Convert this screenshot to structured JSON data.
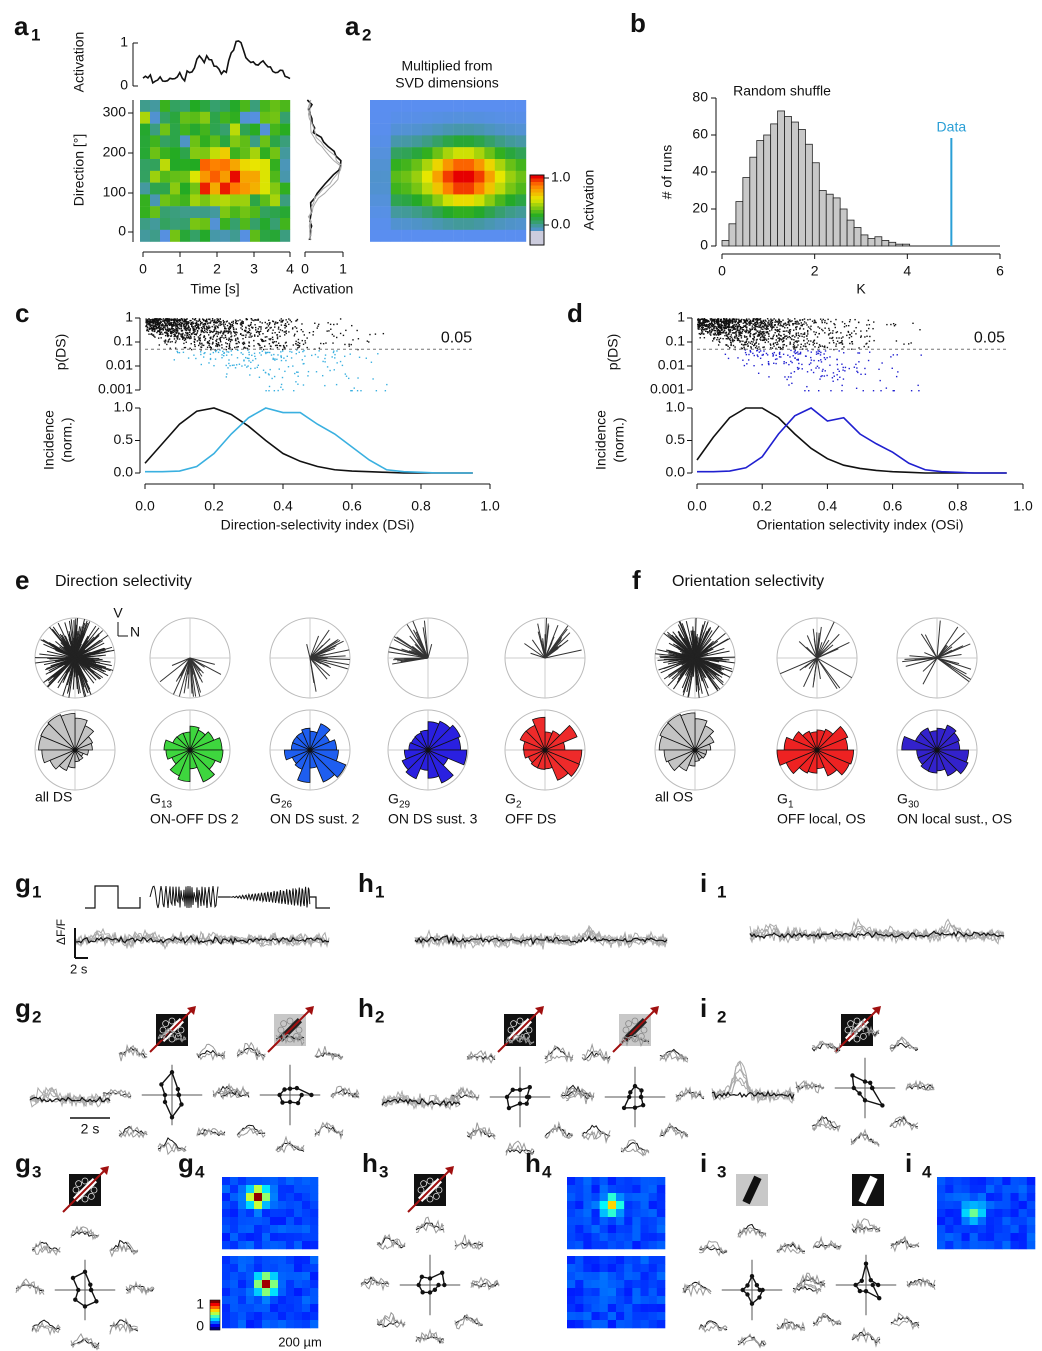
{
  "panels": {
    "a1": {
      "label": "a",
      "sub": "1",
      "top_ylabel": "Activation",
      "top_yticks": [
        "1",
        "0"
      ],
      "ylabel": "Direction [°]",
      "yticks": [
        "300",
        "200",
        "100",
        "0"
      ],
      "xticks": [
        "0",
        "1",
        "2",
        "3",
        "4"
      ],
      "xlabel": "Time [s]",
      "side_xticks": [
        "0",
        "1"
      ],
      "side_xlabel": "Activation"
    },
    "a2": {
      "label": "a",
      "sub": "2",
      "title": [
        "Multiplied from",
        "SVD dimensions"
      ],
      "colorbar_ticks": [
        "1.0",
        "0.0"
      ],
      "colorbar_label": "Activation"
    },
    "b": {
      "label": "b"
    },
    "c": {
      "label": "c"
    },
    "d": {
      "label": "d"
    },
    "e": {
      "label": "e",
      "title": "Direction selectivity",
      "axes": [
        "V",
        "N"
      ],
      "groups": [
        {
          "name": "all DS",
          "color": "#c4c4c4"
        },
        {
          "name": "G",
          "sub": "13",
          "desc": "ON-OFF DS 2",
          "color": "#3ed63e"
        },
        {
          "name": "G",
          "sub": "26",
          "desc": "ON DS sust. 2",
          "color": "#1e5ef0"
        },
        {
          "name": "G",
          "sub": "29",
          "desc": "ON DS sust. 3",
          "color": "#2a20e0"
        },
        {
          "name": "G",
          "sub": "2",
          "desc": "OFF DS",
          "color": "#ee2a2a"
        }
      ]
    },
    "f": {
      "label": "f",
      "title": "Orientation selectivity",
      "groups": [
        {
          "name": "all OS",
          "color": "#c4c4c4"
        },
        {
          "name": "G",
          "sub": "1",
          "desc": "OFF local, OS",
          "color": "#ee2222"
        },
        {
          "name": "G",
          "sub": "30",
          "desc": "ON local sust., OS",
          "color": "#3322cc"
        }
      ]
    },
    "g1": {
      "label": "g",
      "sub": "1",
      "ylabel": "ΔF/F",
      "scale": "2 s"
    },
    "g2": {
      "label": "g",
      "sub": "2",
      "scale": "2 s"
    },
    "g3": {
      "label": "g",
      "sub": "3"
    },
    "g4": {
      "label": "g",
      "sub": "4",
      "cbar_ticks": [
        "1",
        "0"
      ],
      "scale": "200 µm"
    },
    "h1": {
      "label": "h",
      "sub": "1"
    },
    "h2": {
      "label": "h",
      "sub": "2"
    },
    "h3": {
      "label": "h",
      "sub": "3"
    },
    "h4": {
      "label": "h",
      "sub": "4"
    },
    "i1": {
      "label": "i",
      "sub": "1"
    },
    "i2": {
      "label": "i",
      "sub": "2"
    },
    "i3": {
      "label": "i",
      "sub": "3"
    },
    "i4": {
      "label": "i",
      "sub": "4"
    }
  },
  "chart_data": [
    {
      "type": "histogram",
      "title": "Random shuffle",
      "xlabel": "K",
      "ylabel": "# of runs",
      "bins": [
        0,
        0.15,
        0.3,
        0.45,
        0.6,
        0.75,
        0.9,
        1.05,
        1.2,
        1.35,
        1.5,
        1.65,
        1.8,
        1.95,
        2.1,
        2.25,
        2.4,
        2.55,
        2.7,
        2.85,
        3.0,
        3.15,
        3.3,
        3.45,
        3.6,
        3.75,
        3.9,
        4.05
      ],
      "values": [
        3,
        12,
        24,
        37,
        48,
        57,
        60,
        66,
        73,
        70,
        67,
        63,
        55,
        45,
        30,
        28,
        26,
        20,
        14,
        10,
        6,
        4,
        5,
        3,
        2,
        1,
        1
      ],
      "color": "#c8c8c8",
      "xlim": [
        0,
        6
      ],
      "xticks": [
        0,
        2,
        4,
        6
      ],
      "ylim": [
        0,
        80
      ],
      "yticks": [
        0,
        20,
        40,
        60,
        80
      ],
      "marker": {
        "x": 4.95,
        "label": "Data",
        "color": "#2a9fd6"
      }
    },
    {
      "type": "line",
      "xlabel": "Direction-selectivity index (DSi)",
      "ylabel": [
        "Incidence",
        "(norm.)"
      ],
      "p_ylabel": "p(DS)",
      "p_yticks": [
        1,
        0.1,
        0.01,
        0.001
      ],
      "p_log_scale": true,
      "threshold": 0.05,
      "x": [
        0,
        0.05,
        0.1,
        0.15,
        0.2,
        0.25,
        0.3,
        0.35,
        0.4,
        0.45,
        0.5,
        0.55,
        0.6,
        0.65,
        0.7,
        0.75,
        0.8,
        0.85,
        0.9,
        0.95
      ],
      "series": [
        {
          "color": "#111111",
          "values": [
            0.15,
            0.45,
            0.75,
            0.95,
            1.0,
            0.9,
            0.72,
            0.5,
            0.3,
            0.18,
            0.1,
            0.05,
            0.03,
            0.02,
            0.01,
            0,
            0,
            0,
            0,
            0
          ]
        },
        {
          "color": "#3ab0e0",
          "values": [
            0.02,
            0.02,
            0.03,
            0.1,
            0.3,
            0.6,
            0.85,
            1.0,
            0.93,
            0.93,
            0.75,
            0.6,
            0.4,
            0.2,
            0.05,
            0.02,
            0.01,
            0,
            0,
            0
          ]
        }
      ],
      "xlim": [
        0,
        1
      ],
      "xticks": [
        {
          "value": 0,
          "label": "0.0"
        },
        0.2,
        0.4,
        0.6,
        0.8,
        {
          "value": 1,
          "label": "1.0"
        }
      ],
      "ylim": [
        0,
        1
      ],
      "yticks": [
        {
          "value": 0,
          "label": "0.0"
        },
        0.5,
        {
          "value": 1,
          "label": "1.0"
        }
      ]
    },
    {
      "type": "line",
      "xlabel": "Orientation selectivity index (OSi)",
      "ylabel": [
        "Incidence",
        "(norm.)"
      ],
      "p_ylabel": "p(DS)",
      "p_yticks": [
        1,
        0.1,
        0.01,
        0.001
      ],
      "p_log_scale": true,
      "threshold": 0.05,
      "x": [
        0,
        0.05,
        0.1,
        0.15,
        0.2,
        0.25,
        0.3,
        0.35,
        0.4,
        0.45,
        0.5,
        0.55,
        0.6,
        0.65,
        0.7,
        0.75,
        0.8,
        0.85,
        0.9,
        0.95
      ],
      "series": [
        {
          "color": "#111111",
          "values": [
            0.2,
            0.55,
            0.85,
            1.0,
            1.0,
            0.85,
            0.6,
            0.38,
            0.22,
            0.12,
            0.07,
            0.04,
            0.02,
            0.01,
            0,
            0,
            0,
            0,
            0,
            0
          ]
        },
        {
          "color": "#2020d0",
          "values": [
            0.02,
            0.02,
            0.03,
            0.08,
            0.25,
            0.6,
            0.88,
            1.0,
            0.8,
            0.85,
            0.6,
            0.45,
            0.32,
            0.15,
            0.05,
            0.02,
            0.01,
            0,
            0,
            0
          ]
        }
      ],
      "xlim": [
        0,
        1
      ],
      "xticks": [
        {
          "value": 0,
          "label": "0.0"
        },
        0.2,
        0.4,
        0.6,
        0.8,
        {
          "value": 1,
          "label": "1.0"
        }
      ],
      "ylim": [
        0,
        1
      ],
      "yticks": [
        {
          "value": 0,
          "label": "0.0"
        },
        0.5,
        {
          "value": 1,
          "label": "1.0"
        }
      ]
    }
  ]
}
